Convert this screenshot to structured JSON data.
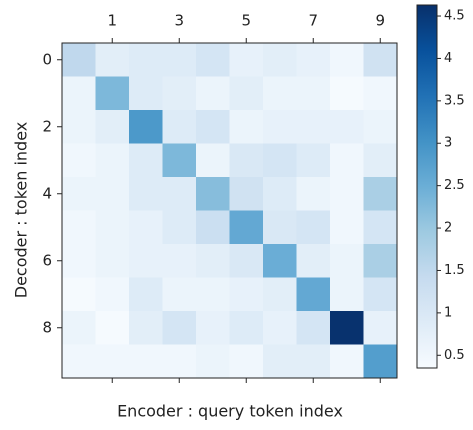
{
  "chart_data": {
    "type": "heatmap",
    "xlabel": "Encoder : query token index",
    "ylabel": "Decoder : token index",
    "xticks": [
      1,
      3,
      5,
      7,
      9
    ],
    "yticks": [
      0,
      2,
      4,
      6,
      8
    ],
    "colorscale": [
      "#f7fbff",
      "#deebf7",
      "#c6dbef",
      "#9ecae1",
      "#6baed6",
      "#4292c6",
      "#2171b5",
      "#08519c",
      "#08306b"
    ],
    "zlim": [
      0.35,
      4.63
    ],
    "colorbar_ticks": [
      0.5,
      1.0,
      1.5,
      2.0,
      2.5,
      3.0,
      3.5,
      4.0,
      4.5
    ],
    "z": [
      [
        1.5,
        0.8,
        0.9,
        0.9,
        1.1,
        0.7,
        0.8,
        0.7,
        0.5,
        1.2
      ],
      [
        0.6,
        2.3,
        0.9,
        0.8,
        0.6,
        0.8,
        0.6,
        0.6,
        0.4,
        0.5
      ],
      [
        0.6,
        0.8,
        2.9,
        0.9,
        1.1,
        0.6,
        0.7,
        0.7,
        0.7,
        0.6
      ],
      [
        0.5,
        0.6,
        0.9,
        2.3,
        0.6,
        1.0,
        1.1,
        0.9,
        0.5,
        0.8
      ],
      [
        0.6,
        0.6,
        0.9,
        0.9,
        2.2,
        1.2,
        0.9,
        0.6,
        0.5,
        1.8
      ],
      [
        0.5,
        0.6,
        0.7,
        0.9,
        1.3,
        2.6,
        1.0,
        1.1,
        0.5,
        1.1
      ],
      [
        0.5,
        0.6,
        0.7,
        0.7,
        0.8,
        1.0,
        2.5,
        0.8,
        0.6,
        1.8
      ],
      [
        0.4,
        0.5,
        0.9,
        0.6,
        0.6,
        0.7,
        0.8,
        2.6,
        0.6,
        1.1
      ],
      [
        0.6,
        0.4,
        0.8,
        1.1,
        0.7,
        0.9,
        0.7,
        1.1,
        4.6,
        0.7
      ],
      [
        0.5,
        0.5,
        0.5,
        0.5,
        0.6,
        0.5,
        0.8,
        0.8,
        0.5,
        2.8
      ]
    ]
  }
}
